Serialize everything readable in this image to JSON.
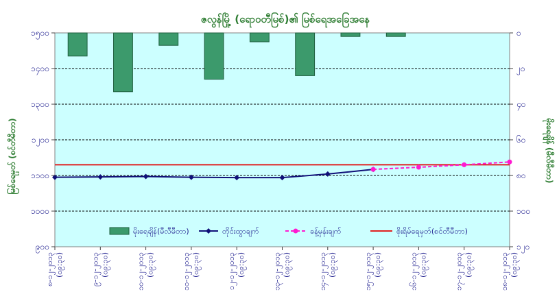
{
  "chart_data": {
    "type": "bar+line",
    "title": "ဇလွန်မြို့ (ရောဝတီမြစ်)၏ မြစ်ရေအခြေအနေ",
    "ylabel_left": "မြစ်ရေမှတ် (စင်တီမီတာ)",
    "ylabel_right": "မိုးရေချိန် (မီလီမီတာ)",
    "y_left_ticks": [
      "၉၀၀",
      "၁၀၀၀",
      "၁၁၀၀",
      "၁၂၀၀",
      "၁၃၀၀",
      "၁၄၀၀",
      "၁၅၀၀"
    ],
    "ylim_left": [
      900,
      1500
    ],
    "y_right_ticks": [
      "၀",
      "၂၀",
      "၄၀",
      "၆၀",
      "၈၀",
      "၁၀၀",
      "၁၂၀"
    ],
    "ylim_right": [
      0,
      120
    ],
    "grid": true,
    "x_ticks_date": [
      "၈-၁၂-၂၀၁၃",
      "၉-၁၂-၂၀၁၃",
      "၁၀-၁၂-၂၀၁၃",
      "၁၁-၁၂-၂၀၁၃",
      "၁၂-၁၂-၂၀၁၃",
      "၁၃-၁၂-၂၀၁၃",
      "၁၄-၁၂-၂၀၁၃",
      "၁၅-၁၂-၂၀၁၃",
      "၁၆-၁၂-၂၀၁၃",
      "၁၇-၁၂-၂၀၁၃",
      "၁၈-၁၂-၂၀၁၃"
    ],
    "x_ticks_time": [
      "(၀၉:၃၀)",
      "(၀၉:၃၀)",
      "(၀၉:၃၀)",
      "(၀၉:၃၀)",
      "(၀၉:၃၀)",
      "(၀၉:၃၀)",
      "(၀၉:၃၀)",
      "(၀၉:၃၀)",
      "(၀၉:၃၀)",
      "(၀၉:၃၀)",
      "(၀၉:၃၀)"
    ],
    "bar_series": {
      "name": "မိုးရေချိန်(မီလီမီတာ)",
      "values": [
        13,
        33,
        7,
        26,
        5,
        24,
        2,
        2
      ],
      "color": "#3c9a6c"
    },
    "series": [
      {
        "name": "တိုင်းထွာချက်",
        "color": "#101078",
        "dash": false,
        "values": [
          1095,
          1096,
          1097,
          1095,
          1094,
          1094,
          1104,
          1117
        ]
      },
      {
        "name": "ခန့်မှန်းချက်",
        "color": "#ff19d0",
        "dash": true,
        "values": [
          1117,
          1123,
          1130,
          1138
        ],
        "x_offset": 7
      }
    ],
    "reference_line": {
      "name": "စိုးရိမ်ရေမှတ်(စင်တီမီတာ)",
      "value": 1130,
      "color": "#e02020"
    },
    "legend_position": "bottom"
  }
}
